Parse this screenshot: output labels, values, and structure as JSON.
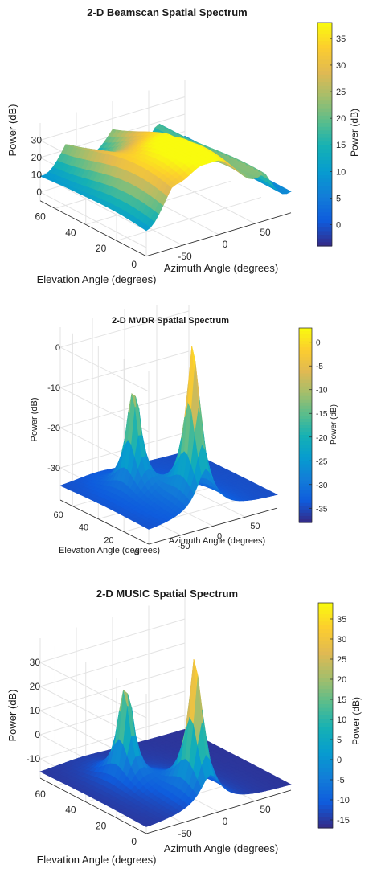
{
  "colors": {
    "background": "#ffffff",
    "axis": "#262626",
    "grid": "#e3e3e3",
    "surface_edge": "#2b2b2b"
  },
  "chart_data": [
    {
      "type": "surface",
      "title": "2-D Beamscan Spatial Spectrum",
      "xlabel": "Azimuth Angle (degrees)",
      "ylabel": "Elevation Angle (degrees)",
      "zlabel": "Power (dB)",
      "colorbar_label": "Power (dB)",
      "xlim": [
        -90,
        90
      ],
      "ylim": [
        0,
        70
      ],
      "zlim": [
        -5,
        40
      ],
      "xticks": [
        "-50",
        "0",
        "50"
      ],
      "yticks": [
        "0",
        "20",
        "40",
        "60"
      ],
      "zticks": [
        "0",
        "10",
        "20",
        "30"
      ],
      "cticks": [
        "0",
        "5",
        "10",
        "15",
        "20",
        "25",
        "30",
        "35"
      ],
      "clim": [
        -4,
        38
      ],
      "colormap": "parula",
      "grid": true,
      "peaks": [
        {
          "azimuth": -10,
          "elevation": 10,
          "power": 38
        },
        {
          "azimuth": -40,
          "elevation": 40,
          "power": 28
        }
      ]
    },
    {
      "type": "surface",
      "title": "2-D MVDR Spatial Spectrum",
      "xlabel": "Azimuth Angle (degrees)",
      "ylabel": "Elevation Angle (degrees)",
      "zlabel": "Power (dB)",
      "colorbar_label": "Power (dB)",
      "xlim": [
        -90,
        90
      ],
      "ylim": [
        0,
        70
      ],
      "zlim": [
        -38,
        5
      ],
      "xticks": [
        "-50",
        "0",
        "50"
      ],
      "yticks": [
        "0",
        "20",
        "40",
        "60"
      ],
      "zticks": [
        "0",
        "-10",
        "-20",
        "-30"
      ],
      "cticks": [
        "0",
        "-5",
        "-10",
        "-15",
        "-20",
        "-25",
        "-30",
        "-35"
      ],
      "clim": [
        -38,
        3
      ],
      "colormap": "parula",
      "grid": true,
      "peaks": [
        {
          "azimuth": -10,
          "elevation": 10,
          "power": 2
        },
        {
          "azimuth": -40,
          "elevation": 40,
          "power": -8
        }
      ]
    },
    {
      "type": "surface",
      "title": "2-D MUSIC Spatial Spectrum",
      "xlabel": "Azimuth Angle (degrees)",
      "ylabel": "Elevation Angle (degrees)",
      "zlabel": "Power (dB)",
      "colorbar_label": "Power (dB)",
      "xlim": [
        -90,
        90
      ],
      "ylim": [
        0,
        70
      ],
      "zlim": [
        -18,
        40
      ],
      "xticks": [
        "-50",
        "0",
        "50"
      ],
      "yticks": [
        "0",
        "20",
        "40",
        "60"
      ],
      "zticks": [
        "30",
        "20",
        "10",
        "0",
        "-10"
      ],
      "cticks": [
        "35",
        "30",
        "25",
        "20",
        "15",
        "10",
        "5",
        "0",
        "-5",
        "-10",
        "-15"
      ],
      "clim": [
        -17,
        39
      ],
      "colormap": "parula",
      "grid": true,
      "peaks": [
        {
          "azimuth": -10,
          "elevation": 10,
          "power": 38
        },
        {
          "azimuth": -40,
          "elevation": 40,
          "power": 27
        }
      ]
    }
  ]
}
